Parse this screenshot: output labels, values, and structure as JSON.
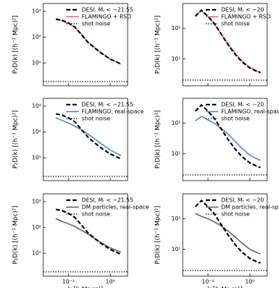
{
  "chart_data": [
    {
      "type": "line",
      "y_label": "P₂D(k) [(h⁻¹ Mpc)²]",
      "log_x": true,
      "log_y": true,
      "x": [
        0.05,
        0.07,
        0.1,
        0.14,
        0.2,
        0.3,
        0.45,
        0.65,
        1.0,
        1.4,
        1.8
      ],
      "xlim": [
        0.025,
        2.6
      ],
      "ylim": [
        1.3,
        2000
      ],
      "xticks": [
        {
          "value": 0.1,
          "label": "10⁻¹"
        },
        {
          "value": 1,
          "label": "10⁰"
        }
      ],
      "show_xtick_labels": false,
      "yticks": [
        {
          "value": 10,
          "label": "10¹"
        },
        {
          "value": 100,
          "label": "10²"
        },
        {
          "value": 1000,
          "label": "10³"
        }
      ],
      "legend": "upper right",
      "series": [
        {
          "name": "DESI, Mᵣ < −21.55",
          "color": "#000000",
          "dash": "dashed",
          "values": [
            500,
            450,
            350,
            250,
            130,
            60,
            35,
            22,
            14,
            11,
            9
          ]
        },
        {
          "name": "FLAMINGO + RSD",
          "color": "#f06ba8",
          "dash": "solid",
          "values": [
            480,
            430,
            340,
            240,
            135,
            62,
            36,
            23,
            14,
            11,
            9
          ]
        }
      ],
      "hline": {
        "name": "shot noise",
        "value": 1.9,
        "color": "#000000"
      }
    },
    {
      "type": "line",
      "y_label": "P₂D(k) [(h⁻¹ Mpc)²]",
      "log_x": true,
      "log_y": true,
      "x": [
        0.05,
        0.07,
        0.1,
        0.14,
        0.2,
        0.3,
        0.45,
        0.65,
        1.0,
        1.4,
        1.8
      ],
      "xlim": [
        0.025,
        2.6
      ],
      "ylim": [
        1.3,
        660
      ],
      "xticks": [
        {
          "value": 0.1,
          "label": "10⁻¹"
        },
        {
          "value": 1,
          "label": "10⁰"
        }
      ],
      "show_xtick_labels": false,
      "yticks": [
        {
          "value": 10,
          "label": "10¹"
        },
        {
          "value": 100,
          "label": "10²"
        }
      ],
      "legend": "upper right",
      "series": [
        {
          "name": "DESI, Mᵣ < −20",
          "color": "#000000",
          "dash": "dashed",
          "values": [
            250,
            400,
            250,
            150,
            70,
            30,
            14,
            8,
            5,
            4,
            3.5
          ]
        },
        {
          "name": "FLAMINGO + RSD",
          "color": "#f06ba8",
          "dash": "solid",
          "values": [
            260,
            380,
            240,
            145,
            72,
            31,
            15,
            8.5,
            5.2,
            4.1,
            3.6
          ]
        }
      ],
      "hline": {
        "name": "shot noise",
        "value": 2,
        "color": "#000000"
      }
    },
    {
      "type": "line",
      "y_label": "P₂D(k) [(h⁻¹ Mpc)²]",
      "log_x": true,
      "log_y": true,
      "x": [
        0.05,
        0.07,
        0.1,
        0.14,
        0.2,
        0.3,
        0.45,
        0.65,
        1.0,
        1.4,
        1.8
      ],
      "xlim": [
        0.025,
        2.6
      ],
      "ylim": [
        1.3,
        2000
      ],
      "xticks": [
        {
          "value": 0.1,
          "label": "10⁻¹"
        },
        {
          "value": 1,
          "label": "10⁰"
        }
      ],
      "show_xtick_labels": false,
      "yticks": [
        {
          "value": 10,
          "label": "10¹"
        },
        {
          "value": 100,
          "label": "10²"
        },
        {
          "value": 1000,
          "label": "10³"
        }
      ],
      "legend": "upper right",
      "series": [
        {
          "name": "DESI, Mᵣ < −21.55",
          "color": "#000000",
          "dash": "dashed",
          "values": [
            500,
            450,
            350,
            250,
            130,
            60,
            35,
            22,
            14,
            11,
            9
          ]
        },
        {
          "name": "FLAMINGO, real-space",
          "color": "#5b8fd6",
          "dash": "solid",
          "values": [
            350,
            280,
            220,
            170,
            120,
            80,
            50,
            32,
            20,
            15,
            12
          ]
        }
      ],
      "hline": {
        "name": "shot noise",
        "value": 1.9,
        "color": "#000000"
      }
    },
    {
      "type": "line",
      "y_label": "P₂D(k) [(h⁻¹ Mpc)²]",
      "log_x": true,
      "log_y": true,
      "x": [
        0.05,
        0.07,
        0.1,
        0.14,
        0.2,
        0.3,
        0.45,
        0.65,
        1.0,
        1.4,
        1.8
      ],
      "xlim": [
        0.025,
        2.6
      ],
      "ylim": [
        1.3,
        660
      ],
      "xticks": [
        {
          "value": 0.1,
          "label": "10⁻¹"
        },
        {
          "value": 1,
          "label": "10⁰"
        }
      ],
      "show_xtick_labels": false,
      "yticks": [
        {
          "value": 10,
          "label": "10¹"
        },
        {
          "value": 100,
          "label": "10²"
        }
      ],
      "legend": "upper right",
      "series": [
        {
          "name": "DESI, Mᵣ < −20",
          "color": "#000000",
          "dash": "dashed",
          "values": [
            250,
            400,
            250,
            150,
            70,
            30,
            14,
            8,
            5,
            4,
            3.5
          ]
        },
        {
          "name": "FLAMINGO, real-space",
          "color": "#5b8fd6",
          "dash": "solid",
          "values": [
            120,
            170,
            130,
            100,
            70,
            45,
            25,
            15,
            9,
            7,
            6
          ]
        }
      ],
      "hline": {
        "name": "shot noise",
        "value": 2,
        "color": "#000000"
      }
    },
    {
      "type": "line",
      "x_label": "k [h Mpc⁻¹]",
      "y_label": "P₂D(k) [(h⁻¹ Mpc)²]",
      "log_x": true,
      "log_y": true,
      "x": [
        0.05,
        0.07,
        0.1,
        0.14,
        0.2,
        0.3,
        0.45,
        0.65,
        1.0,
        1.4,
        1.8
      ],
      "xlim": [
        0.025,
        2.6
      ],
      "ylim": [
        1.3,
        2000
      ],
      "xticks": [
        {
          "value": 0.1,
          "label": "10⁻¹"
        },
        {
          "value": 1,
          "label": "10⁰"
        }
      ],
      "show_xtick_labels": true,
      "yticks": [
        {
          "value": 10,
          "label": "10¹"
        },
        {
          "value": 100,
          "label": "10²"
        },
        {
          "value": 1000,
          "label": "10³"
        }
      ],
      "legend": "upper right",
      "series": [
        {
          "name": "DESI, Mᵣ < −21.55",
          "color": "#000000",
          "dash": "dashed",
          "values": [
            500,
            450,
            350,
            250,
            130,
            60,
            35,
            22,
            14,
            11,
            9
          ]
        },
        {
          "name": "DM particles, real-space",
          "color": "#6e6e6e",
          "dash": "solid",
          "values": [
            220,
            170,
            140,
            110,
            80,
            55,
            35,
            24,
            16,
            13,
            11
          ]
        }
      ],
      "hline": {
        "name": "shot noise",
        "value": 1.9,
        "color": "#000000"
      }
    },
    {
      "type": "line",
      "x_label": "k [h Mpc⁻¹]",
      "y_label": "P₂D(k) [(h⁻¹ Mpc)²]",
      "log_x": true,
      "log_y": true,
      "x": [
        0.05,
        0.07,
        0.1,
        0.14,
        0.2,
        0.3,
        0.45,
        0.65,
        1.0,
        1.4,
        1.8
      ],
      "xlim": [
        0.025,
        2.6
      ],
      "ylim": [
        1.3,
        660
      ],
      "xticks": [
        {
          "value": 0.1,
          "label": "10⁻¹"
        },
        {
          "value": 1,
          "label": "10⁰"
        }
      ],
      "show_xtick_labels": true,
      "yticks": [
        {
          "value": 10,
          "label": "10¹"
        },
        {
          "value": 100,
          "label": "10²"
        }
      ],
      "legend": "upper right",
      "series": [
        {
          "name": "DESI, Mᵣ < −20",
          "color": "#000000",
          "dash": "dashed",
          "values": [
            250,
            400,
            250,
            150,
            70,
            30,
            14,
            8,
            5,
            4,
            3.5
          ]
        },
        {
          "name": "DM particles, real-space",
          "color": "#6e6e6e",
          "dash": "solid",
          "values": [
            150,
            120,
            100,
            80,
            60,
            40,
            25,
            16,
            10,
            8,
            7
          ]
        }
      ],
      "hline": {
        "name": "shot noise",
        "value": 2,
        "color": "#000000"
      }
    }
  ]
}
